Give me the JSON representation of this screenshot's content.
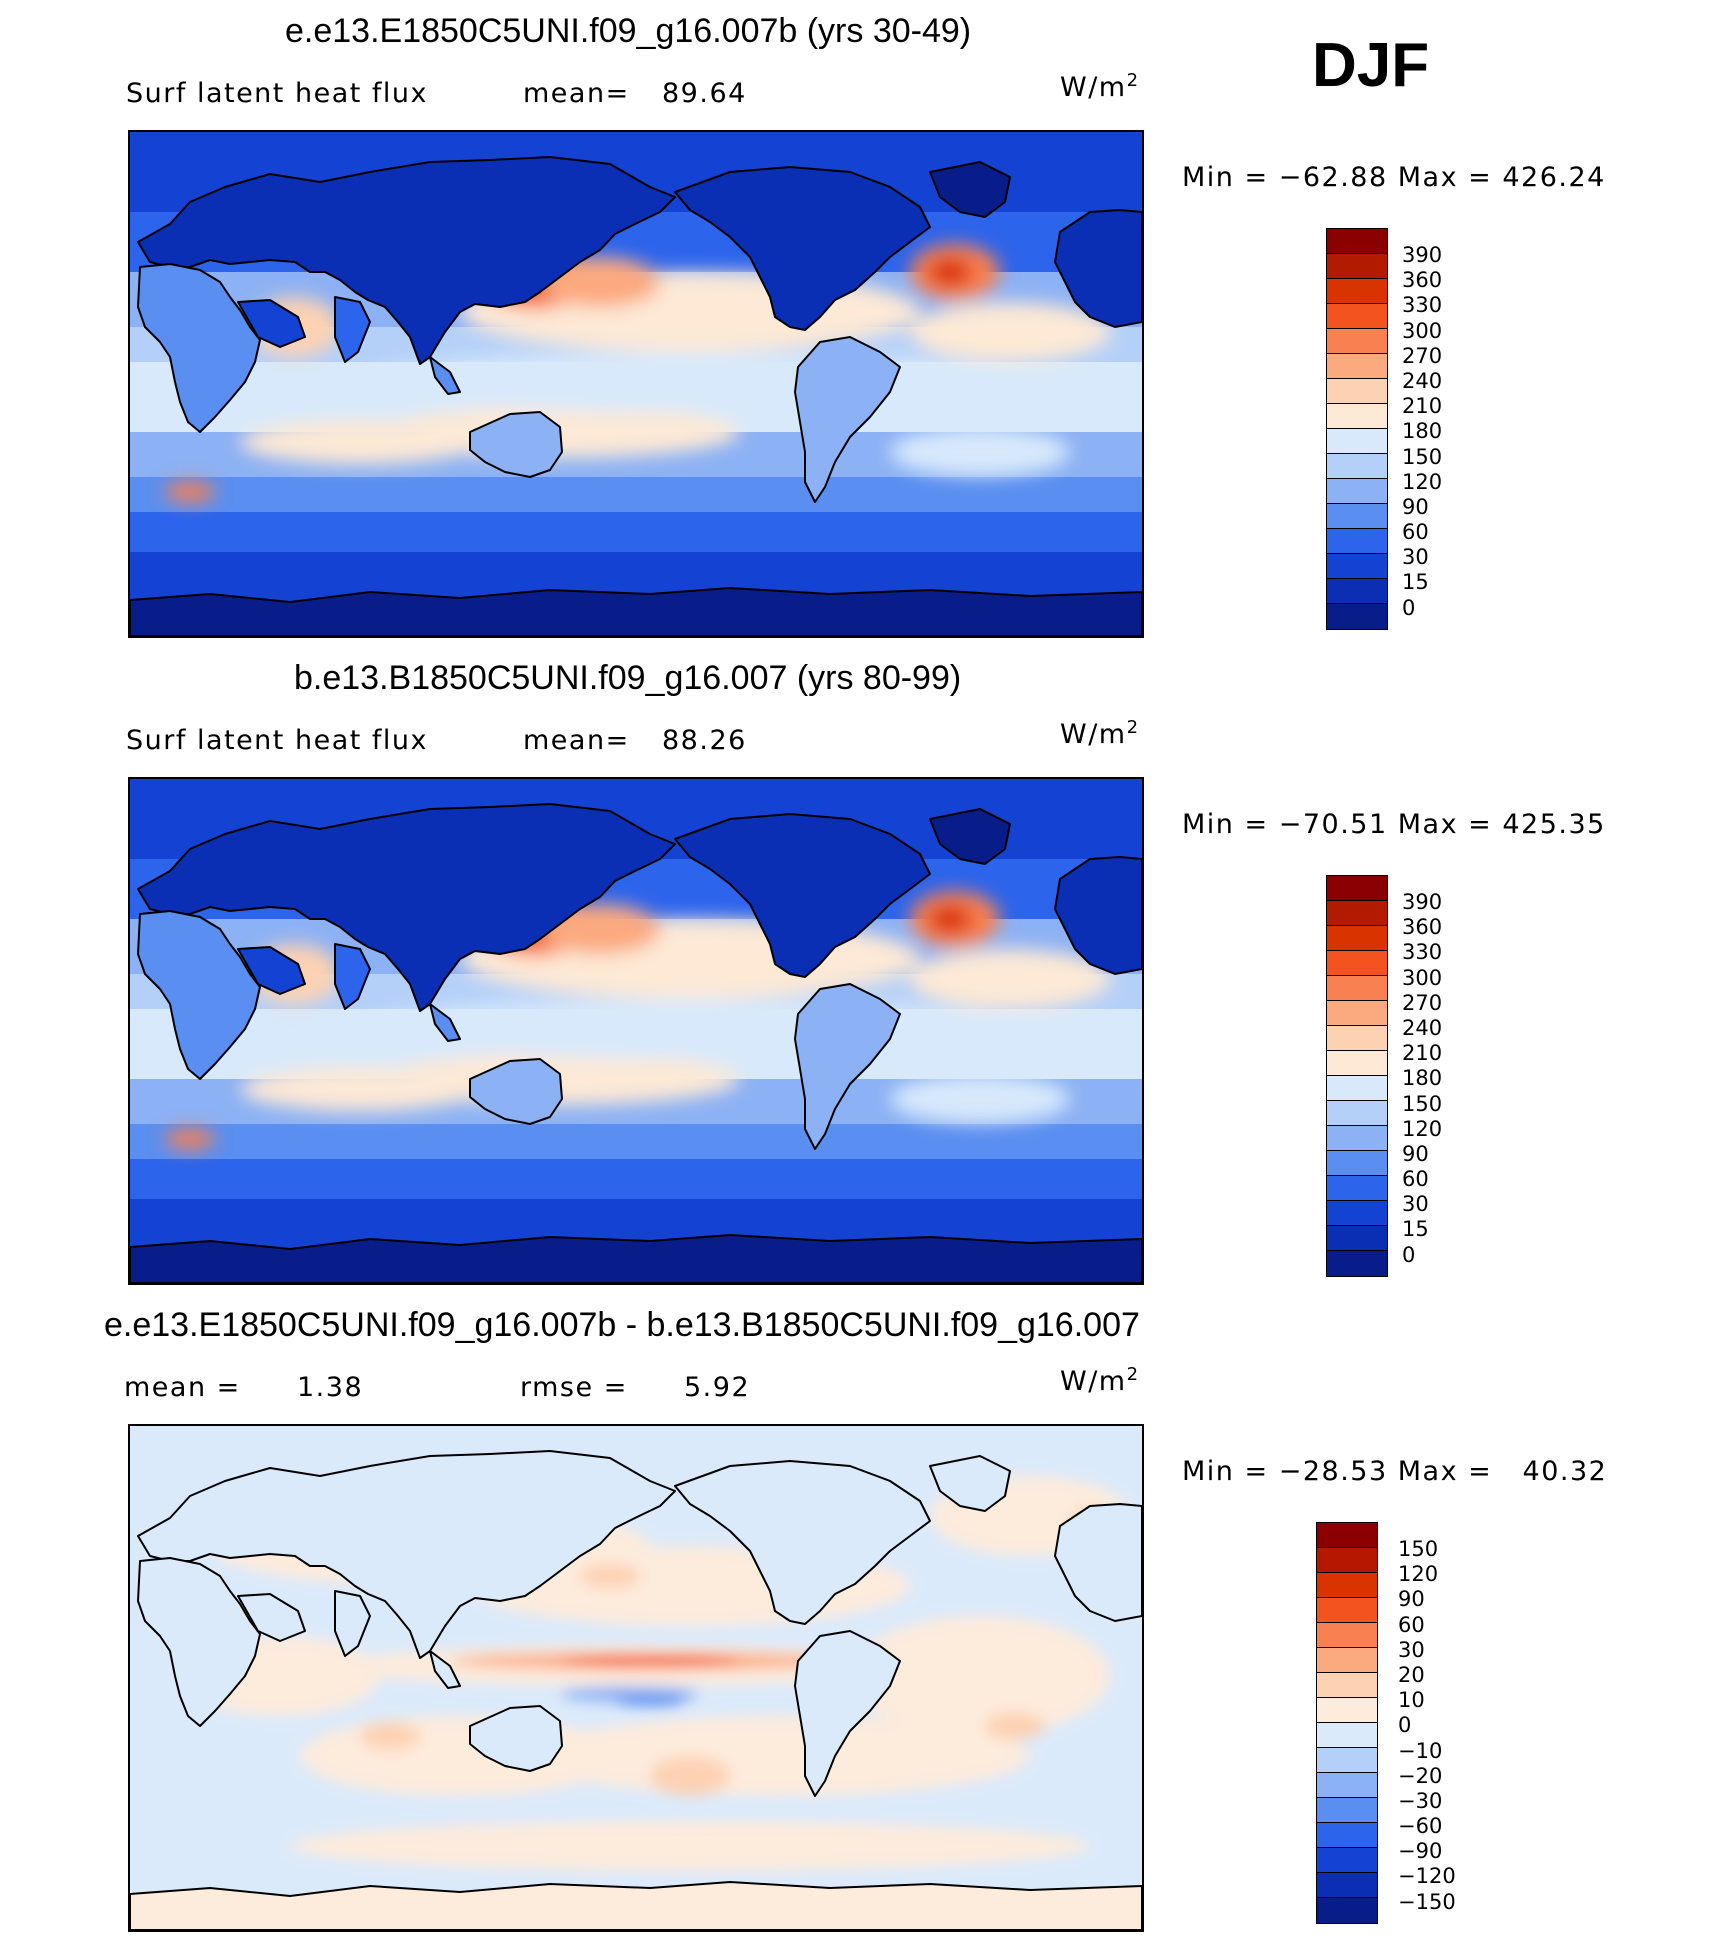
{
  "season": "DJF",
  "panels": [
    {
      "title": "e.e13.E1850C5UNI.f09_g16.007b (yrs 30-49)",
      "left_text": "Surf latent heat flux",
      "stat_label": "mean=",
      "stat_value": "89.64",
      "stat2_label": "",
      "stat2_value": "",
      "units_base": "W/m",
      "units_exp": "2",
      "min_label": "Min",
      "min_value": "−62.88",
      "max_label": "Max",
      "max_value": "426.24",
      "colorbar_labels": [
        "390",
        "360",
        "330",
        "300",
        "270",
        "240",
        "210",
        "180",
        "150",
        "120",
        "90",
        "60",
        "30",
        "15",
        "0"
      ]
    },
    {
      "title": "b.e13.B1850C5UNI.f09_g16.007 (yrs 80-99)",
      "left_text": "Surf latent heat flux",
      "stat_label": "mean=",
      "stat_value": "88.26",
      "stat2_label": "",
      "stat2_value": "",
      "units_base": "W/m",
      "units_exp": "2",
      "min_label": "Min",
      "min_value": "−70.51",
      "max_label": "Max",
      "max_value": "425.35",
      "colorbar_labels": [
        "390",
        "360",
        "330",
        "300",
        "270",
        "240",
        "210",
        "180",
        "150",
        "120",
        "90",
        "60",
        "30",
        "15",
        "0"
      ]
    },
    {
      "title": "e.e13.E1850C5UNI.f09_g16.007b - b.e13.B1850C5UNI.f09_g16.007",
      "left_text": "mean =",
      "stat_label": "",
      "stat_value": "1.38",
      "stat2_label": "rmse =",
      "stat2_value": "5.92",
      "units_base": "W/m",
      "units_exp": "2",
      "min_label": "Min",
      "min_value": "−28.53",
      "max_label": "Max",
      "max_value": "40.32",
      "colorbar_labels": [
        "150",
        "120",
        "90",
        "60",
        "30",
        "20",
        "10",
        "0",
        "−10",
        "−20",
        "−30",
        "−60",
        "−90",
        "−120",
        "−150"
      ]
    }
  ],
  "colors": {
    "abs_scale": [
      "#8b0000",
      "#b31b00",
      "#d93300",
      "#f2531f",
      "#f98050",
      "#fba97f",
      "#fdd2b3",
      "#fde9d6",
      "#d7e9fb",
      "#b5d0f8",
      "#8cb1f4",
      "#5a8ef0",
      "#2c64ec",
      "#1443d4",
      "#0a2fb5",
      "#081d8a"
    ],
    "diff_scale": [
      "#8b0000",
      "#b51700",
      "#d93300",
      "#f2531f",
      "#f98050",
      "#fba97f",
      "#fdd2b3",
      "#fdebdc",
      "#dbeafb",
      "#b5d0f8",
      "#8cb1f4",
      "#5a8ef0",
      "#2c64ec",
      "#1443d4",
      "#0a2fb5",
      "#081d8a"
    ],
    "coast": "#000000"
  }
}
